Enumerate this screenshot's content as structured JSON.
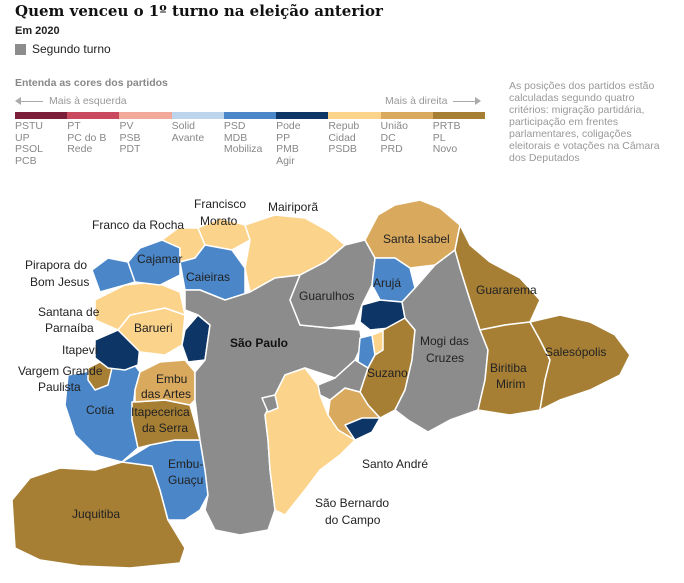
{
  "header": {
    "title": "Quem venceu o 1º turno na eleição anterior",
    "subtitle": "Em 2020",
    "second_round_label": "Segundo turno"
  },
  "scale": {
    "title": "Entenda as cores dos partidos",
    "left_label": "Mais à esquerda",
    "right_label": "Mais à direita"
  },
  "colors": {
    "second_round": "#8c8c8c",
    "psd_blue": "#4a86c8",
    "pode_navy": "#0d3566",
    "repub_yellow": "#fcd38a",
    "uniao_tan": "#d9a95d",
    "prtb_brown": "#a67f35"
  },
  "party_groups": [
    {
      "color": "#7a1e3a",
      "parties": [
        "PSTU",
        "UP",
        "PSOL",
        "PCB"
      ]
    },
    {
      "color": "#c9495e",
      "parties": [
        "PT",
        "PC do B",
        "Rede"
      ]
    },
    {
      "color": "#f2a99a",
      "parties": [
        "PV",
        "PSB",
        "PDT"
      ]
    },
    {
      "color": "#bcd4ec",
      "parties": [
        "Solid",
        "Avante"
      ]
    },
    {
      "color": "#4a86c8",
      "parties": [
        "PSD",
        "MDB",
        "Mobiliza"
      ]
    },
    {
      "color": "#0d3566",
      "parties": [
        "Pode",
        "PP",
        "PMB",
        "Agir"
      ]
    },
    {
      "color": "#fcd38a",
      "parties": [
        "Repub",
        "Cidad",
        "PSDB"
      ]
    },
    {
      "color": "#d9a95d",
      "parties": [
        "União",
        "DC",
        "PRD"
      ]
    },
    {
      "color": "#a67f35",
      "parties": [
        "PRTB",
        "PL",
        "Novo"
      ]
    }
  ],
  "note": "As posições dos partidos estão calculadas segundo quatro critérios: migração partidária, participação em frentes parlamentares, coligações eleitorais e votações na Câmara dos Deputados",
  "map": {
    "municipalities": {
      "sao_paulo": "São Paulo",
      "guarulhos": "Guarulhos",
      "mogi_das_cruzes": [
        "Mogi das",
        "Cruzes"
      ],
      "santa_isabel": "Santa Isabel",
      "aruja": "Arujá",
      "guararema": "Guararema",
      "biritiba_mirim": [
        "Biritiba",
        "Mirim"
      ],
      "salesopolis": "Salesópolis",
      "suzano": "Suzano",
      "santo_andre": "Santo André",
      "sao_bernardo": [
        "São Bernardo",
        "do Campo"
      ],
      "juquitiba": "Juquitiba",
      "embu_guacu": [
        "Embu-",
        "Guaçu"
      ],
      "itapecerica": [
        "Itapecerica",
        "da Serra"
      ],
      "embu_das_artes": [
        "Embu",
        "das Artes"
      ],
      "cotia": "Cotia",
      "vargem_grande": [
        "Vargem Grande",
        "Paulista"
      ],
      "itapevi": "Itapevi",
      "santana_parnaiba": [
        "Santana de",
        "Parnaíba"
      ],
      "pirapora": [
        "Pirapora do",
        "Bom Jesus"
      ],
      "cajamar": "Cajamar",
      "franco_da_rocha": "Franco da Rocha",
      "francisco_morato": [
        "Francisco",
        "Morato"
      ],
      "mairipora": "Mairiporã",
      "caieiras": "Caieiras",
      "barueri": "Barueri"
    }
  }
}
